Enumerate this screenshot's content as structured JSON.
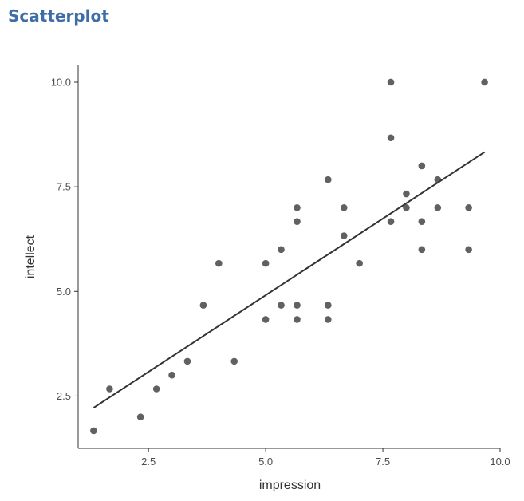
{
  "page": {
    "title": "Scatterplot"
  },
  "chart_data": {
    "type": "scatter",
    "title": "",
    "xlabel": "impression",
    "ylabel": "intellect",
    "xlim": [
      1.0,
      10.0
    ],
    "ylim": [
      1.25,
      10.4
    ],
    "x_ticks": [
      2.5,
      5.0,
      7.5,
      10.0
    ],
    "x_tick_labels": [
      "2.5",
      "5.0",
      "7.5",
      "10.0"
    ],
    "y_ticks": [
      2.5,
      5.0,
      7.5,
      10.0
    ],
    "y_tick_labels": [
      "2.5",
      "5.0",
      "7.5",
      "10.0"
    ],
    "grid": false,
    "point_color": "#3a3a3a",
    "line_color": "#333333",
    "points": [
      {
        "x": 1.33,
        "y": 1.67
      },
      {
        "x": 1.67,
        "y": 2.67
      },
      {
        "x": 2.33,
        "y": 2.0
      },
      {
        "x": 2.67,
        "y": 2.67
      },
      {
        "x": 3.0,
        "y": 3.0
      },
      {
        "x": 3.33,
        "y": 3.33
      },
      {
        "x": 3.67,
        "y": 4.67
      },
      {
        "x": 4.0,
        "y": 5.67
      },
      {
        "x": 4.33,
        "y": 3.33
      },
      {
        "x": 5.0,
        "y": 5.67
      },
      {
        "x": 5.0,
        "y": 4.33
      },
      {
        "x": 5.33,
        "y": 6.0
      },
      {
        "x": 5.33,
        "y": 4.67
      },
      {
        "x": 5.67,
        "y": 7.0
      },
      {
        "x": 5.67,
        "y": 6.67
      },
      {
        "x": 5.67,
        "y": 4.67
      },
      {
        "x": 5.67,
        "y": 4.33
      },
      {
        "x": 6.33,
        "y": 7.67
      },
      {
        "x": 6.33,
        "y": 4.67
      },
      {
        "x": 6.33,
        "y": 4.33
      },
      {
        "x": 6.67,
        "y": 7.0
      },
      {
        "x": 6.67,
        "y": 6.33
      },
      {
        "x": 7.0,
        "y": 5.67
      },
      {
        "x": 7.67,
        "y": 10.0
      },
      {
        "x": 7.67,
        "y": 8.67
      },
      {
        "x": 7.67,
        "y": 6.67
      },
      {
        "x": 8.0,
        "y": 7.33
      },
      {
        "x": 8.0,
        "y": 7.0
      },
      {
        "x": 8.33,
        "y": 8.0
      },
      {
        "x": 8.33,
        "y": 6.67
      },
      {
        "x": 8.33,
        "y": 6.0
      },
      {
        "x": 8.67,
        "y": 7.67
      },
      {
        "x": 8.67,
        "y": 7.0
      },
      {
        "x": 9.33,
        "y": 7.0
      },
      {
        "x": 9.33,
        "y": 6.0
      },
      {
        "x": 9.67,
        "y": 10.0
      }
    ],
    "trend_line": {
      "x": [
        1.33,
        9.67
      ],
      "y": [
        2.22,
        8.33
      ]
    }
  }
}
